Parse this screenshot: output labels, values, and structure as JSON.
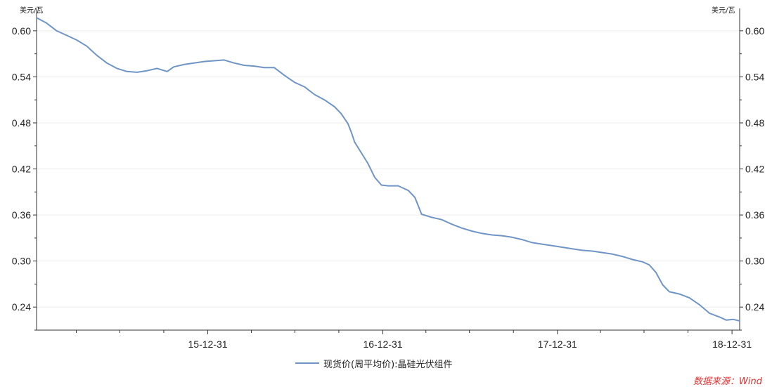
{
  "chart_data": {
    "type": "line",
    "unit_left": "美元/瓦",
    "unit_right": "美元/瓦",
    "x_tick_labels": [
      "15-12-31",
      "16-12-31",
      "17-12-31",
      "18-12-31"
    ],
    "x_range": [
      "2015-01-07",
      "2019-01-16"
    ],
    "y_range": [
      0.21,
      0.62
    ],
    "y_ticks": [
      0.24,
      0.3,
      0.36,
      0.42,
      0.48,
      0.54,
      0.6
    ],
    "y_tick_labels": [
      "0.24",
      "0.30",
      "0.36",
      "0.42",
      "0.48",
      "0.54",
      "0.60"
    ],
    "grid": true,
    "legend_position": "bottom-center",
    "series": [
      {
        "name": "现货价(周平均价):晶硅光伏组件",
        "color": "#6f95c6",
        "points": [
          [
            "2015-01-07",
            0.617
          ],
          [
            "2015-01-28",
            0.61
          ],
          [
            "2015-02-18",
            0.6
          ],
          [
            "2015-03-11",
            0.594
          ],
          [
            "2015-04-01",
            0.588
          ],
          [
            "2015-04-22",
            0.58
          ],
          [
            "2015-05-13",
            0.568
          ],
          [
            "2015-06-03",
            0.558
          ],
          [
            "2015-06-24",
            0.551
          ],
          [
            "2015-07-15",
            0.547
          ],
          [
            "2015-08-05",
            0.546
          ],
          [
            "2015-08-26",
            0.548
          ],
          [
            "2015-09-16",
            0.551
          ],
          [
            "2015-10-07",
            0.547
          ],
          [
            "2015-10-21",
            0.553
          ],
          [
            "2015-11-11",
            0.556
          ],
          [
            "2015-12-02",
            0.558
          ],
          [
            "2015-12-23",
            0.56
          ],
          [
            "2016-01-13",
            0.561
          ],
          [
            "2016-02-03",
            0.562
          ],
          [
            "2016-02-24",
            0.558
          ],
          [
            "2016-03-16",
            0.555
          ],
          [
            "2016-04-06",
            0.554
          ],
          [
            "2016-04-27",
            0.552
          ],
          [
            "2016-05-18",
            0.552
          ],
          [
            "2016-06-08",
            0.542
          ],
          [
            "2016-06-29",
            0.533
          ],
          [
            "2016-07-20",
            0.527
          ],
          [
            "2016-08-10",
            0.517
          ],
          [
            "2016-08-31",
            0.51
          ],
          [
            "2016-09-21",
            0.501
          ],
          [
            "2016-10-05",
            0.492
          ],
          [
            "2016-10-19",
            0.479
          ],
          [
            "2016-10-26",
            0.468
          ],
          [
            "2016-11-02",
            0.455
          ],
          [
            "2016-11-16",
            0.441
          ],
          [
            "2016-11-30",
            0.427
          ],
          [
            "2016-12-14",
            0.409
          ],
          [
            "2016-12-28",
            0.399
          ],
          [
            "2017-01-11",
            0.398
          ],
          [
            "2017-02-01",
            0.398
          ],
          [
            "2017-02-22",
            0.392
          ],
          [
            "2017-03-08",
            0.383
          ],
          [
            "2017-03-22",
            0.361
          ],
          [
            "2017-04-12",
            0.357
          ],
          [
            "2017-05-03",
            0.354
          ],
          [
            "2017-05-24",
            0.348
          ],
          [
            "2017-06-14",
            0.343
          ],
          [
            "2017-07-05",
            0.339
          ],
          [
            "2017-07-26",
            0.336
          ],
          [
            "2017-08-16",
            0.334
          ],
          [
            "2017-09-06",
            0.333
          ],
          [
            "2017-09-27",
            0.331
          ],
          [
            "2017-10-18",
            0.328
          ],
          [
            "2017-11-08",
            0.324
          ],
          [
            "2017-11-29",
            0.322
          ],
          [
            "2017-12-20",
            0.32
          ],
          [
            "2018-01-10",
            0.318
          ],
          [
            "2018-01-31",
            0.316
          ],
          [
            "2018-02-21",
            0.314
          ],
          [
            "2018-03-14",
            0.313
          ],
          [
            "2018-04-04",
            0.311
          ],
          [
            "2018-04-25",
            0.309
          ],
          [
            "2018-05-16",
            0.306
          ],
          [
            "2018-06-06",
            0.302
          ],
          [
            "2018-06-27",
            0.299
          ],
          [
            "2018-07-11",
            0.295
          ],
          [
            "2018-07-25",
            0.285
          ],
          [
            "2018-08-08",
            0.269
          ],
          [
            "2018-08-22",
            0.26
          ],
          [
            "2018-09-12",
            0.257
          ],
          [
            "2018-10-03",
            0.252
          ],
          [
            "2018-10-24",
            0.243
          ],
          [
            "2018-11-14",
            0.232
          ],
          [
            "2018-12-05",
            0.227
          ],
          [
            "2018-12-19",
            0.223
          ],
          [
            "2019-01-02",
            0.224
          ],
          [
            "2019-01-16",
            0.222
          ]
        ]
      }
    ]
  },
  "source_text": "数据来源：Wind"
}
